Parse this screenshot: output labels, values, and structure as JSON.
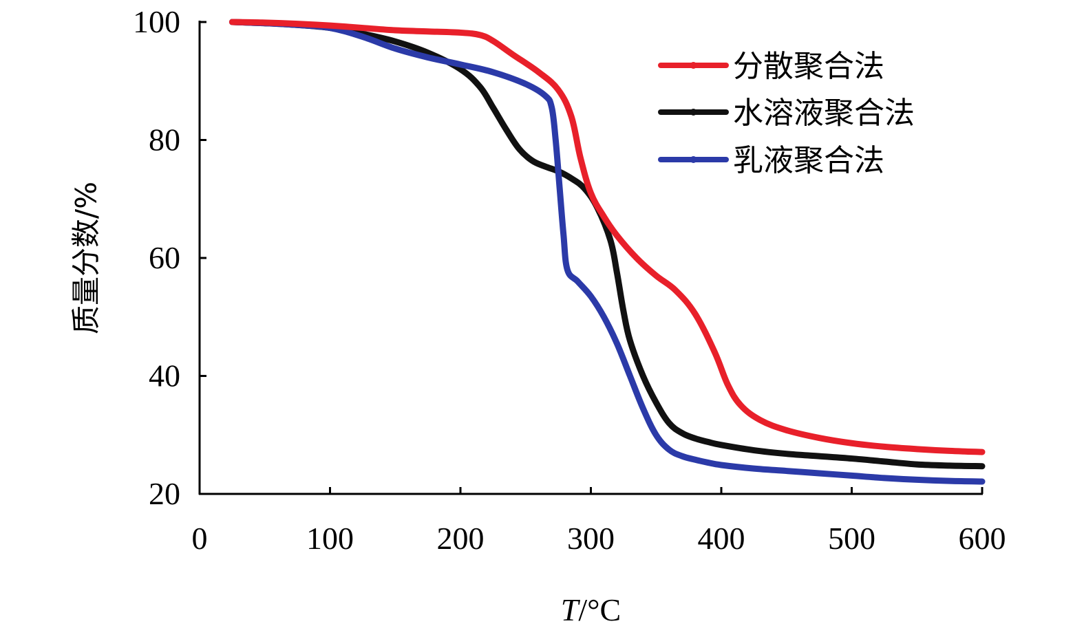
{
  "chart_data": {
    "type": "line",
    "title": "",
    "xlabel": "T/°C",
    "ylabel": "质量分数/%",
    "xlim": [
      0,
      600
    ],
    "ylim": [
      20,
      100
    ],
    "xticks": [
      0,
      100,
      200,
      300,
      400,
      500,
      600
    ],
    "yticks": [
      20,
      40,
      60,
      80,
      100
    ],
    "grid": false,
    "legend_position": "top-right",
    "series": [
      {
        "name": "分散聚合法",
        "color": "#e8202a",
        "x": [
          25,
          50,
          75,
          100,
          125,
          150,
          175,
          200,
          215,
          225,
          240,
          260,
          275,
          285,
          292,
          300,
          310,
          320,
          335,
          350,
          365,
          380,
          395,
          405,
          415,
          430,
          450,
          475,
          500,
          525,
          550,
          575,
          600
        ],
        "y": [
          100,
          99.9,
          99.7,
          99.4,
          99.0,
          98.6,
          98.4,
          98.2,
          97.8,
          96.8,
          94.5,
          91.5,
          88.5,
          84.0,
          77.0,
          71.0,
          67.0,
          63.8,
          60.0,
          57.0,
          54.5,
          50.5,
          44.0,
          38.5,
          35.0,
          32.5,
          30.8,
          29.5,
          28.6,
          28.0,
          27.6,
          27.3,
          27.1
        ]
      },
      {
        "name": "水溶液聚合法",
        "color": "#111111",
        "x": [
          25,
          50,
          75,
          100,
          125,
          150,
          175,
          200,
          215,
          225,
          235,
          245,
          255,
          265,
          275,
          285,
          295,
          305,
          315,
          320,
          325,
          330,
          340,
          350,
          360,
          370,
          380,
          390,
          400,
          425,
          450,
          475,
          500,
          525,
          550,
          575,
          600
        ],
        "y": [
          100,
          99.8,
          99.5,
          99.0,
          98.0,
          96.7,
          94.8,
          92.0,
          89.0,
          85.5,
          81.8,
          78.5,
          76.5,
          75.5,
          74.7,
          73.5,
          71.8,
          68.5,
          63.0,
          57.5,
          51.0,
          46.0,
          40.0,
          35.5,
          32.0,
          30.3,
          29.4,
          28.8,
          28.3,
          27.4,
          26.8,
          26.4,
          26.0,
          25.5,
          25.0,
          24.8,
          24.7
        ]
      },
      {
        "name": "乳液聚合法",
        "color": "#2b3aa8",
        "x": [
          25,
          50,
          75,
          100,
          125,
          150,
          175,
          200,
          225,
          250,
          265,
          270,
          273,
          276,
          279,
          282,
          290,
          300,
          310,
          320,
          330,
          340,
          350,
          360,
          370,
          380,
          390,
          400,
          425,
          450,
          475,
          500,
          525,
          550,
          575,
          600
        ],
        "y": [
          100,
          99.8,
          99.5,
          99.0,
          97.5,
          95.5,
          94.0,
          92.8,
          91.5,
          89.5,
          87.5,
          85.5,
          80.0,
          72.0,
          64.0,
          58.0,
          56.0,
          53.5,
          50.0,
          45.5,
          40.0,
          34.5,
          30.0,
          27.5,
          26.4,
          25.8,
          25.3,
          24.9,
          24.3,
          23.9,
          23.5,
          23.1,
          22.7,
          22.4,
          22.2,
          22.1
        ]
      }
    ]
  }
}
